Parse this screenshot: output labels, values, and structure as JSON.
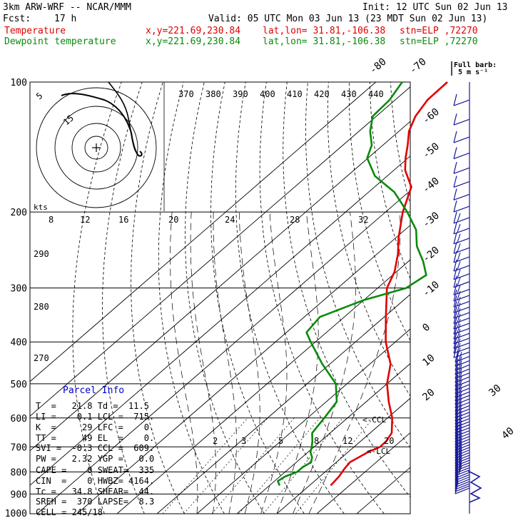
{
  "header": {
    "model": "3km ARW-WRF -- NCAR/MMM",
    "init": "Init: 12 UTC Sun 02 Jun 13",
    "fcst_label": "Fcst:",
    "fcst_value": "17 h",
    "valid": "Valid: 05 UTC Mon 03 Jun 13 (23 MDT Sun 02 Jun 13)",
    "temp_label": "Temperature",
    "dew_label": "Dewpoint temperature",
    "xy": "x,y=221.69,230.84",
    "latlon": "lat,lon= 31.81,-106.38",
    "stn": "stn=ELP ,72270"
  },
  "barb_key": {
    "title": "Full barb:",
    "value": "5 m s⁻¹"
  },
  "hodograph": {
    "ring_labels": [
      "5",
      "15"
    ],
    "kts_label": "kts"
  },
  "parcel_info": {
    "title": "Parcel Info",
    "rows": [
      "T  =   21.8 Td =  11.5",
      "LI =    0.1 LCL =  715.",
      "K  =     29 LFC =    0.",
      "TT =     49 EL  =    0.",
      "SVI =  -0.3 CCL =  609.",
      "PW =   2.32 YGP =   0.0",
      "CAPE =    0 SWEAT=  335",
      "CIN  =    0 HWBZ= 4164.",
      "Tc =   34.8 SHEAR=  44.",
      "SREH =  370 LAPSE=  8.3",
      "CELL = 245/18"
    ]
  },
  "markers": {
    "ccl": "<-CCL",
    "lcl": "<-LCL"
  },
  "chart_data": {
    "type": "line",
    "title": "",
    "xlabel": "",
    "ylabel": "",
    "y_scale": "log-pressure (inverted)",
    "ylim": [
      1000,
      100
    ],
    "xlim": [
      -28,
      36
    ],
    "pressure_ticks": [
      "100",
      "200",
      "300",
      "400",
      "500",
      "600",
      "700",
      "800",
      "900",
      "1000"
    ],
    "pressure_values": [
      100,
      200,
      300,
      400,
      500,
      600,
      700,
      800,
      900,
      1000
    ],
    "isotherm_labels": [
      "-80",
      "-70",
      "-60",
      "-50",
      "-40",
      "-30",
      "-20",
      "-10",
      "0",
      "10",
      "20",
      "30",
      "40"
    ],
    "isotherm_values": [
      -80,
      -70,
      -60,
      -50,
      -40,
      -30,
      -20,
      -10,
      0,
      10,
      20,
      30,
      40
    ],
    "theta_labels": [
      "370",
      "380",
      "390",
      "400",
      "410",
      "420",
      "430",
      "440"
    ],
    "mixing_ratio_top_labels": [
      "8",
      "12",
      "16",
      "20",
      "24",
      "28",
      "32"
    ],
    "mixing_ratio_bottom_labels": [
      "2",
      "3",
      "5",
      "8",
      "12",
      "20"
    ],
    "theta_e_labels": [
      "290",
      "280",
      "270"
    ],
    "colors": {
      "temperature": "#e00000",
      "dewpoint": "#0a8a0a",
      "wind_barbs": "#1a1a9a",
      "hodograph": "#000000",
      "background_lines": "#000000"
    },
    "series": [
      {
        "name": "Temperature",
        "p": [
          860,
          820,
          790,
          760,
          720,
          700,
          680,
          650,
          600,
          550,
          500,
          450,
          400,
          350,
          300,
          275,
          250,
          230,
          200,
          175,
          160,
          150,
          140,
          130,
          120,
          110,
          100
        ],
        "t": [
          25.3,
          24.8,
          24.0,
          23.4,
          25.0,
          26.5,
          26.4,
          25.4,
          21.2,
          15.6,
          10.0,
          5.2,
          -2.4,
          -9.6,
          -17.7,
          -20.5,
          -24.8,
          -29.2,
          -35.7,
          -40.8,
          -47.2,
          -50.6,
          -53.8,
          -57.5,
          -60.2,
          -61.9,
          -62.1
        ]
      },
      {
        "name": "Dewpoint temperature",
        "p": [
          860,
          840,
          820,
          800,
          780,
          760,
          740,
          720,
          700,
          680,
          650,
          600,
          550,
          500,
          450,
          400,
          380,
          350,
          320,
          300,
          280,
          260,
          240,
          220,
          200,
          180,
          165,
          150,
          140,
          130,
          120,
          110,
          100
        ],
        "t": [
          12.5,
          10.8,
          11.3,
          13.0,
          13.0,
          13.7,
          12.5,
          10.6,
          9.4,
          8.0,
          5.5,
          4.2,
          2.6,
          -2.8,
          -11.9,
          -21.2,
          -25.0,
          -26.1,
          -20.0,
          -12.9,
          -11.6,
          -16.4,
          -22.3,
          -27.2,
          -34.6,
          -43.5,
          -53.1,
          -60.2,
          -62.8,
          -67.2,
          -70.9,
          -71.4,
          -73.4
        ]
      }
    ]
  }
}
